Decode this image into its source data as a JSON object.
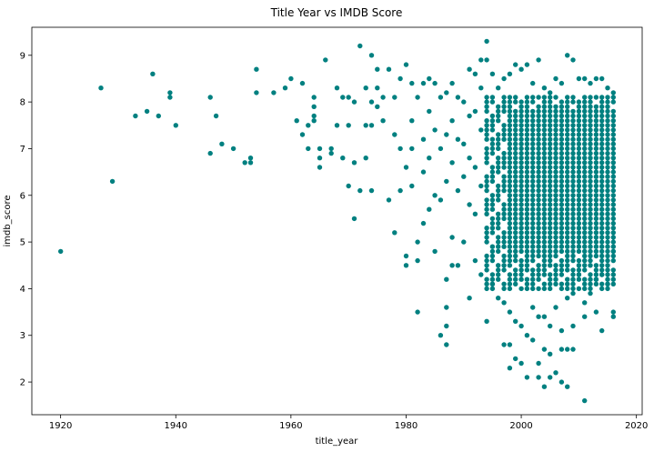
{
  "chart_data": {
    "type": "scatter",
    "title": "Title Year vs IMDB Score",
    "xlabel": "title_year",
    "ylabel": "imdb_score",
    "xlim": [
      1915,
      2021
    ],
    "ylim": [
      1.3,
      9.6
    ],
    "xticks": [
      1920,
      1940,
      1960,
      1980,
      2000,
      2020
    ],
    "yticks": [
      2,
      3,
      4,
      5,
      6,
      7,
      8,
      9
    ],
    "grid": false,
    "marker_color": "#008080",
    "dense_region": {
      "note": "From about 1994 to 2016, points cover nearly every 0.1 step between about 4 and 8",
      "x_range": [
        1994,
        2016
      ],
      "y_range": [
        4.0,
        8.1
      ]
    },
    "series": [
      {
        "points": [
          [
            1920,
            4.8
          ],
          [
            1927,
            8.3
          ],
          [
            1929,
            6.3
          ],
          [
            1933,
            7.7
          ],
          [
            1935,
            7.8
          ],
          [
            1936,
            8.6
          ],
          [
            1937,
            7.7
          ],
          [
            1939,
            8.2
          ],
          [
            1939,
            8.1
          ],
          [
            1940,
            7.5
          ],
          [
            1946,
            8.1
          ],
          [
            1946,
            6.9
          ],
          [
            1947,
            7.7
          ],
          [
            1948,
            7.1
          ],
          [
            1950,
            7.0
          ],
          [
            1952,
            6.7
          ],
          [
            1953,
            6.8
          ],
          [
            1953,
            6.7
          ],
          [
            1954,
            8.7
          ],
          [
            1954,
            8.2
          ],
          [
            1957,
            8.2
          ],
          [
            1959,
            8.3
          ],
          [
            1960,
            8.5
          ],
          [
            1961,
            7.6
          ],
          [
            1962,
            8.4
          ],
          [
            1962,
            7.3
          ],
          [
            1963,
            7.5
          ],
          [
            1963,
            7.0
          ],
          [
            1964,
            8.1
          ],
          [
            1964,
            7.9
          ],
          [
            1964,
            7.7
          ],
          [
            1964,
            7.6
          ],
          [
            1965,
            7.0
          ],
          [
            1965,
            6.8
          ],
          [
            1965,
            6.6
          ],
          [
            1966,
            8.9
          ],
          [
            1967,
            7.0
          ],
          [
            1967,
            6.9
          ],
          [
            1968,
            8.3
          ],
          [
            1968,
            7.5
          ],
          [
            1969,
            8.1
          ],
          [
            1969,
            6.8
          ],
          [
            1970,
            8.1
          ],
          [
            1970,
            7.5
          ],
          [
            1970,
            6.2
          ],
          [
            1971,
            8.0
          ],
          [
            1971,
            5.5
          ],
          [
            1971,
            6.7
          ],
          [
            1972,
            9.2
          ],
          [
            1972,
            6.1
          ],
          [
            1973,
            8.3
          ],
          [
            1973,
            7.5
          ],
          [
            1973,
            6.8
          ],
          [
            1974,
            9.0
          ],
          [
            1974,
            8.0
          ],
          [
            1974,
            6.1
          ],
          [
            1974,
            7.5
          ],
          [
            1975,
            8.7
          ],
          [
            1975,
            8.3
          ],
          [
            1975,
            7.9
          ],
          [
            1976,
            8.1
          ],
          [
            1976,
            7.6
          ],
          [
            1977,
            8.7
          ],
          [
            1977,
            5.9
          ],
          [
            1978,
            8.1
          ],
          [
            1978,
            7.3
          ],
          [
            1978,
            5.2
          ],
          [
            1979,
            8.5
          ],
          [
            1979,
            7.0
          ],
          [
            1979,
            6.1
          ],
          [
            1980,
            8.8
          ],
          [
            1980,
            6.6
          ],
          [
            1980,
            4.7
          ],
          [
            1980,
            4.5
          ],
          [
            1981,
            8.4
          ],
          [
            1981,
            7.6
          ],
          [
            1981,
            7.0
          ],
          [
            1981,
            6.2
          ],
          [
            1982,
            8.1
          ],
          [
            1982,
            5.0
          ],
          [
            1982,
            4.6
          ],
          [
            1982,
            3.5
          ],
          [
            1983,
            8.4
          ],
          [
            1983,
            7.2
          ],
          [
            1983,
            6.5
          ],
          [
            1983,
            5.4
          ],
          [
            1984,
            8.5
          ],
          [
            1984,
            7.8
          ],
          [
            1984,
            6.8
          ],
          [
            1984,
            5.7
          ],
          [
            1985,
            8.4
          ],
          [
            1985,
            7.4
          ],
          [
            1985,
            6.0
          ],
          [
            1985,
            4.8
          ],
          [
            1986,
            8.1
          ],
          [
            1986,
            7.0
          ],
          [
            1986,
            5.9
          ],
          [
            1986,
            3.0
          ],
          [
            1987,
            8.2
          ],
          [
            1987,
            7.3
          ],
          [
            1987,
            6.3
          ],
          [
            1987,
            4.2
          ],
          [
            1987,
            3.6
          ],
          [
            1987,
            3.2
          ],
          [
            1987,
            2.8
          ],
          [
            1988,
            8.4
          ],
          [
            1988,
            7.6
          ],
          [
            1988,
            6.7
          ],
          [
            1988,
            5.1
          ],
          [
            1988,
            4.5
          ],
          [
            1989,
            8.1
          ],
          [
            1989,
            7.2
          ],
          [
            1989,
            6.1
          ],
          [
            1989,
            4.5
          ],
          [
            1990,
            8.0
          ],
          [
            1990,
            7.1
          ],
          [
            1990,
            6.4
          ],
          [
            1990,
            5.0
          ],
          [
            1991,
            8.7
          ],
          [
            1991,
            7.7
          ],
          [
            1991,
            6.8
          ],
          [
            1991,
            5.8
          ],
          [
            1991,
            3.8
          ],
          [
            1992,
            8.6
          ],
          [
            1992,
            7.8
          ],
          [
            1992,
            6.6
          ],
          [
            1992,
            5.6
          ],
          [
            1992,
            4.6
          ],
          [
            1993,
            8.9
          ],
          [
            1993,
            8.3
          ],
          [
            1993,
            7.4
          ],
          [
            1993,
            6.2
          ],
          [
            1993,
            4.3
          ],
          [
            1994,
            9.3
          ],
          [
            1994,
            8.9
          ],
          [
            1994,
            7.2
          ],
          [
            1994,
            3.3
          ],
          [
            1995,
            8.6
          ],
          [
            1995,
            4.1
          ],
          [
            1996,
            8.3
          ],
          [
            1996,
            3.8
          ],
          [
            1997,
            8.5
          ],
          [
            1997,
            3.7
          ],
          [
            1997,
            2.8
          ],
          [
            1998,
            8.6
          ],
          [
            1998,
            3.5
          ],
          [
            1998,
            2.8
          ],
          [
            1998,
            2.3
          ],
          [
            1999,
            8.8
          ],
          [
            1999,
            3.3
          ],
          [
            1999,
            2.5
          ],
          [
            2000,
            8.7
          ],
          [
            2000,
            3.2
          ],
          [
            2000,
            2.4
          ],
          [
            2001,
            8.8
          ],
          [
            2001,
            3.0
          ],
          [
            2001,
            2.1
          ],
          [
            2002,
            8.4
          ],
          [
            2002,
            3.6
          ],
          [
            2002,
            2.9
          ],
          [
            2003,
            8.9
          ],
          [
            2003,
            3.4
          ],
          [
            2003,
            2.4
          ],
          [
            2003,
            2.1
          ],
          [
            2004,
            8.3
          ],
          [
            2004,
            3.4
          ],
          [
            2004,
            2.7
          ],
          [
            2004,
            1.9
          ],
          [
            2005,
            8.2
          ],
          [
            2005,
            3.2
          ],
          [
            2005,
            2.6
          ],
          [
            2005,
            2.1
          ],
          [
            2006,
            8.5
          ],
          [
            2006,
            3.6
          ],
          [
            2006,
            2.2
          ],
          [
            2007,
            8.4
          ],
          [
            2007,
            3.1
          ],
          [
            2007,
            2.7
          ],
          [
            2007,
            2.0
          ],
          [
            2008,
            9.0
          ],
          [
            2008,
            3.8
          ],
          [
            2008,
            2.7
          ],
          [
            2008,
            1.9
          ],
          [
            2009,
            8.9
          ],
          [
            2009,
            3.9
          ],
          [
            2009,
            3.2
          ],
          [
            2009,
            2.7
          ],
          [
            2010,
            8.5
          ],
          [
            2010,
            4.3
          ],
          [
            2011,
            8.5
          ],
          [
            2011,
            3.7
          ],
          [
            2011,
            3.4
          ],
          [
            2011,
            1.6
          ],
          [
            2012,
            8.4
          ],
          [
            2012,
            3.9
          ],
          [
            2013,
            8.5
          ],
          [
            2013,
            4.2
          ],
          [
            2013,
            3.5
          ],
          [
            2014,
            8.5
          ],
          [
            2014,
            4.3
          ],
          [
            2014,
            3.1
          ],
          [
            2015,
            8.3
          ],
          [
            2015,
            4.4
          ],
          [
            2015,
            4.1
          ],
          [
            2016,
            8.2
          ],
          [
            2016,
            4.8
          ],
          [
            2016,
            3.5
          ],
          [
            2016,
            3.4
          ]
        ]
      }
    ]
  }
}
